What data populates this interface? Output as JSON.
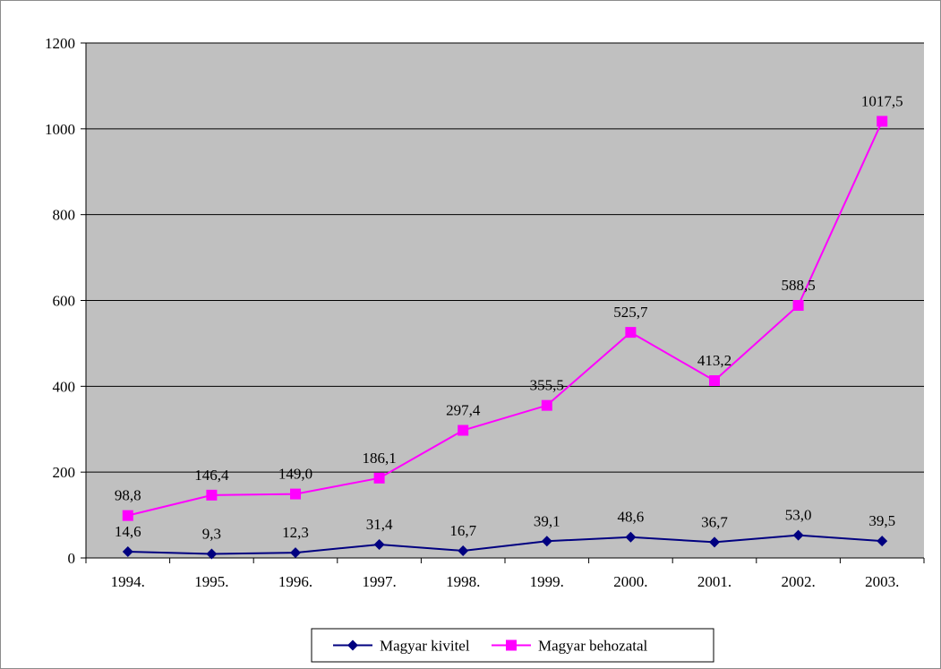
{
  "chart_data": {
    "type": "line",
    "categories": [
      "1994.",
      "1995.",
      "1996.",
      "1997.",
      "1998.",
      "1999.",
      "2000.",
      "2001.",
      "2002.",
      "2003."
    ],
    "series": [
      {
        "name": "Magyar kivitel",
        "values": [
          14.6,
          9.3,
          12.3,
          31.4,
          16.7,
          39.1,
          48.6,
          36.7,
          53.0,
          39.5
        ],
        "labels": [
          "14,6",
          "9,3",
          "12,3",
          "31,4",
          "16,7",
          "39,1",
          "48,6",
          "36,7",
          "53,0",
          "39,5"
        ],
        "color": "#000080",
        "marker": "diamond"
      },
      {
        "name": "Magyar behozatal",
        "values": [
          98.8,
          146.4,
          149.0,
          186.1,
          297.4,
          355.5,
          525.7,
          413.2,
          588.5,
          1017.5
        ],
        "labels": [
          "98,8",
          "146,4",
          "149,0",
          "186,1",
          "297,4",
          "355,5",
          "525,7",
          "413,2",
          "588,5",
          "1017,5"
        ],
        "color": "#ff00ff",
        "marker": "square"
      }
    ],
    "title": "",
    "xlabel": "",
    "ylabel": "",
    "ylim": [
      0,
      1200
    ],
    "yticks": [
      0,
      200,
      400,
      600,
      800,
      1000,
      1200
    ],
    "grid": true,
    "plot_background": "#c0c0c0",
    "legend": "bottom"
  }
}
